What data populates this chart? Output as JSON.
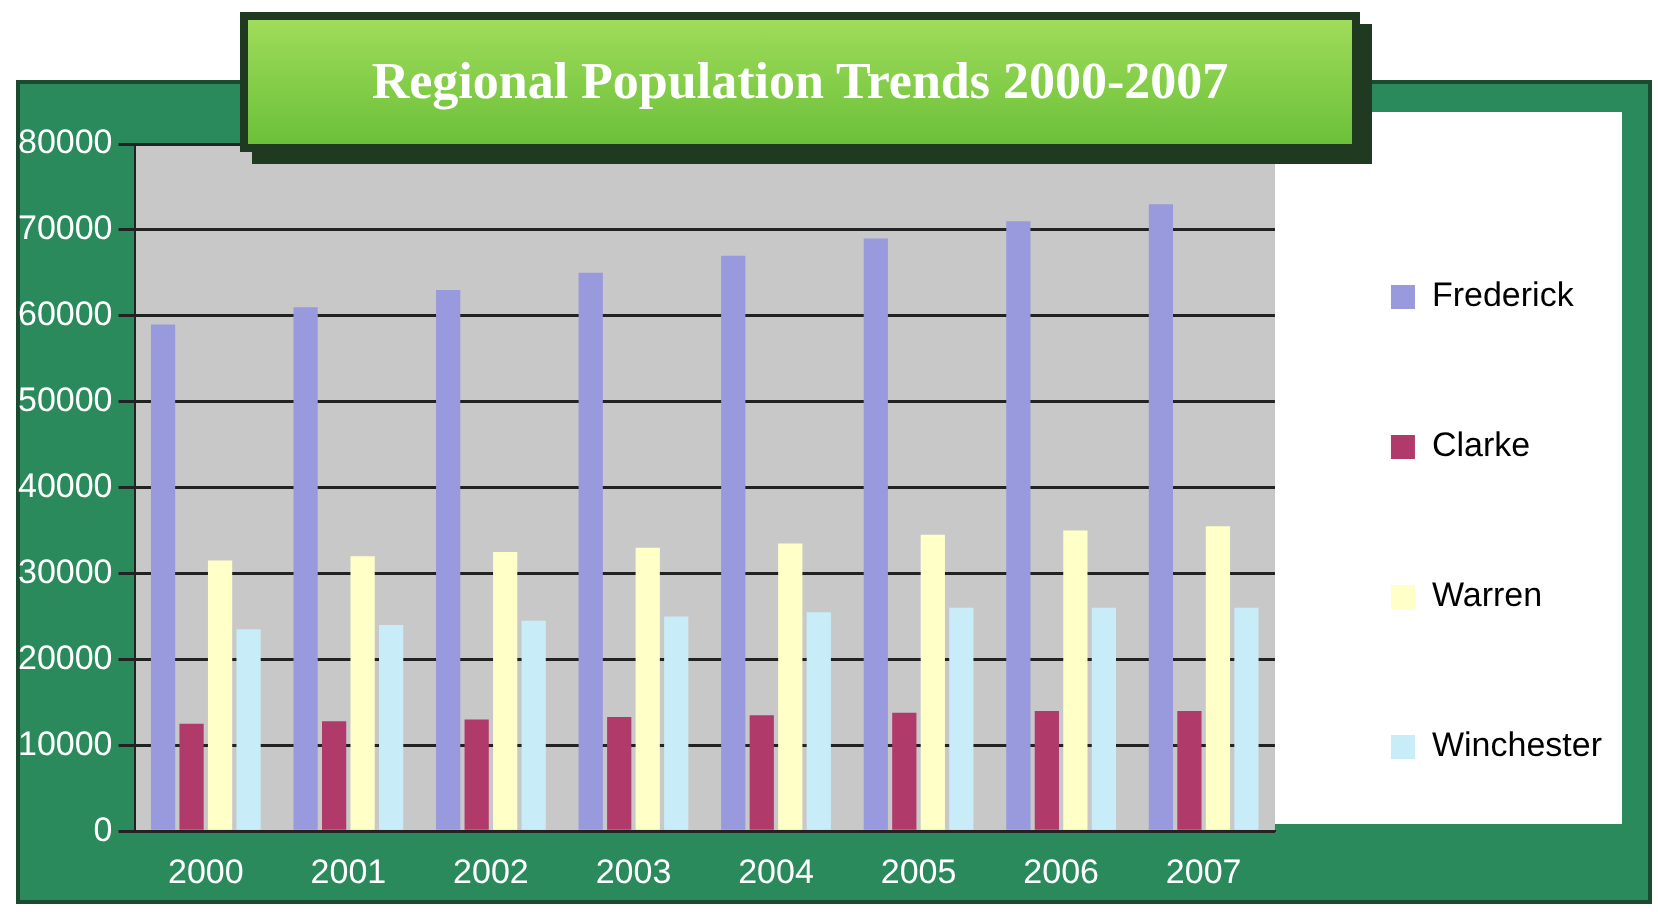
{
  "chart_data": {
    "type": "bar",
    "title": "Regional Population Trends 2000-2007",
    "categories": [
      "2000",
      "2001",
      "2002",
      "2003",
      "2004",
      "2005",
      "2006",
      "2007"
    ],
    "series": [
      {
        "name": "Frederick",
        "color": "#9999dd",
        "values": [
          59000,
          61000,
          63000,
          65000,
          67000,
          69000,
          71000,
          73000
        ]
      },
      {
        "name": "Clarke",
        "color": "#b03a6a",
        "values": [
          12500,
          12800,
          13000,
          13300,
          13500,
          13800,
          14000,
          14000
        ]
      },
      {
        "name": "Warren",
        "color": "#ffffc8",
        "values": [
          31500,
          32000,
          32500,
          33000,
          33500,
          34500,
          35000,
          35500
        ]
      },
      {
        "name": "Winchester",
        "color": "#c8ecf8",
        "values": [
          23500,
          24000,
          24500,
          25000,
          25500,
          26000,
          26000,
          26000
        ]
      }
    ],
    "ylim": [
      0,
      80000
    ],
    "yticks": [
      0,
      10000,
      20000,
      30000,
      40000,
      50000,
      60000,
      70000,
      80000
    ],
    "grid": "y",
    "legend": "right"
  }
}
